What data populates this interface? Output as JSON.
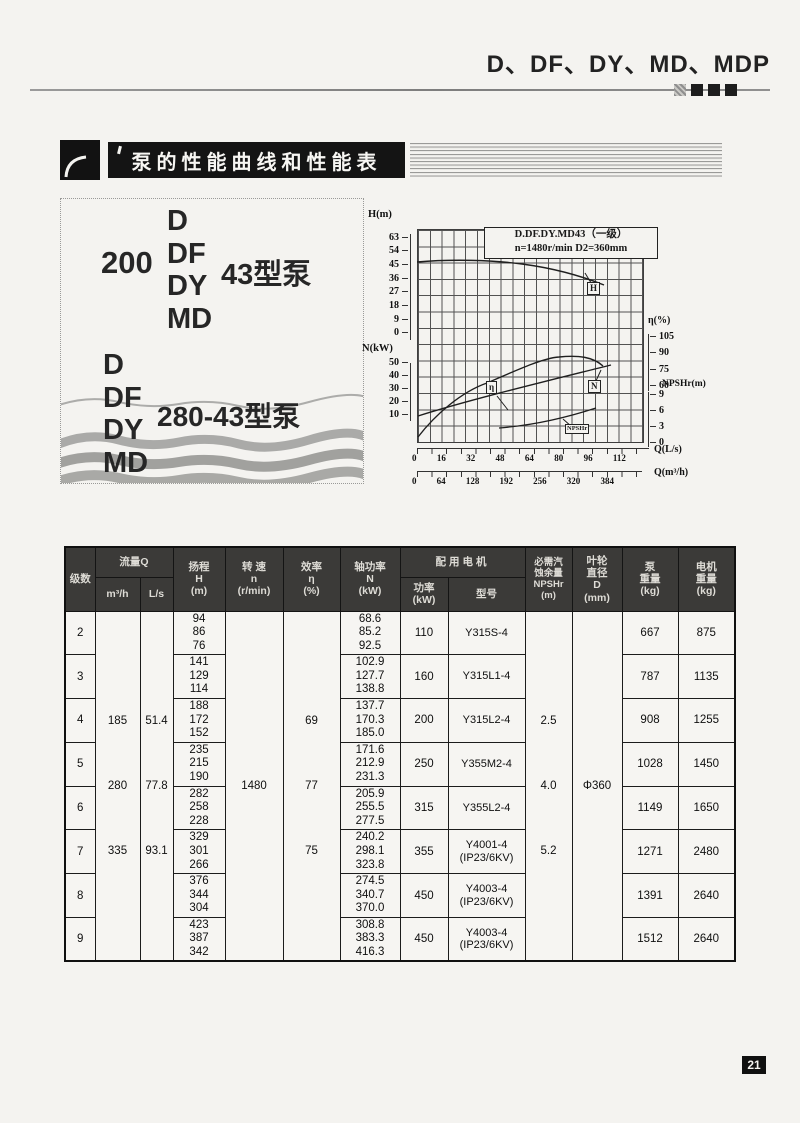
{
  "page": {
    "number": "21"
  },
  "header": {
    "title": "D、DF、DY、MD、MDP"
  },
  "banner": {
    "title": "泵的性能曲线和性能表"
  },
  "logo": {
    "group1": {
      "prefix": "200",
      "models": [
        "D",
        "DF",
        "DY",
        "MD"
      ],
      "suffix": "43型泵"
    },
    "group2": {
      "models": [
        "D",
        "DF",
        "DY",
        "MD"
      ],
      "suffix": "280-43型泵"
    }
  },
  "chart_data": {
    "type": "line",
    "title": "D.DF.DY.MD43（一级）",
    "subtitle": "n=1480r/min  D2=360mm",
    "grid": true,
    "axes": {
      "h": {
        "label": "H(m)",
        "ticks": [
          "63",
          "54",
          "45",
          "36",
          "27",
          "18",
          "9",
          "0"
        ]
      },
      "n": {
        "label": "N(kW)",
        "ticks": [
          "50",
          "40",
          "30",
          "20",
          "10"
        ]
      },
      "eta": {
        "label": "η(%)",
        "ticks": [
          "105",
          "90",
          "75",
          "60"
        ]
      },
      "npshr": {
        "label": "NPSHr(m)",
        "ticks": [
          "9",
          "6",
          "3",
          "0"
        ]
      },
      "q_ls": {
        "label": "Q(L/s)",
        "ticks": [
          "0",
          "16",
          "32",
          "48",
          "64",
          "80",
          "96",
          "112"
        ]
      },
      "q_m3h": {
        "label": "Q(m³/h)",
        "ticks": [
          "0",
          "64",
          "128",
          "192",
          "256",
          "320",
          "384"
        ]
      }
    },
    "series": [
      {
        "name": "H",
        "unit": "m",
        "x_q_ls": [
          0,
          16,
          32,
          48,
          64,
          80,
          96,
          102
        ],
        "y": [
          47,
          47,
          46,
          45,
          43.5,
          40.5,
          35.5,
          32
        ]
      },
      {
        "name": "N",
        "unit": "kW",
        "x_q_ls": [
          0,
          16,
          32,
          48,
          64,
          80,
          96,
          106
        ],
        "y": [
          8.5,
          15,
          22,
          27,
          32,
          37.5,
          43,
          48
        ]
      },
      {
        "name": "η",
        "unit": "%",
        "x_q_ls": [
          0,
          16,
          32,
          48,
          64,
          80,
          96,
          102
        ],
        "y": [
          0,
          32,
          52,
          63,
          70,
          75,
          77,
          74
        ]
      },
      {
        "name": "NPSHr",
        "unit": "m",
        "x_q_ls": [
          46,
          64,
          80,
          98
        ],
        "y": [
          2.5,
          3.2,
          4.2,
          6.0
        ]
      }
    ]
  },
  "table": {
    "header": {
      "stage": "级数",
      "flow": "流量Q",
      "flow_m3h": "m³/h",
      "flow_ls": "L/s",
      "head": "扬程\nH\n(m)",
      "speed": "转 速\nn\n(r/min)",
      "eff": "效率\nη\n(%)",
      "shaft": "轴功率\nN\n(kW)",
      "motor_group": "配用电机",
      "motor_power": "功率\n(kW)",
      "motor_model": "型号",
      "npshr": "必需汽\n蚀余量\nNPSHr\n(m)",
      "diameter": "叶轮\n直径\nD\n(mm)",
      "pump_weight": "泵\n重量\n(kg)",
      "motor_weight": "电机\n重量\n(kg)"
    },
    "merged": {
      "flow_m3h": [
        "185",
        "280",
        "335"
      ],
      "flow_ls": [
        "51.4",
        "77.8",
        "93.1"
      ],
      "speed": "1480",
      "eff": [
        "69",
        "77",
        "75"
      ],
      "npshr": [
        "2.5",
        "4.0",
        "5.2"
      ],
      "diameter": "Φ360"
    },
    "rows": [
      {
        "stage": "2",
        "h": [
          "94",
          "86",
          "76"
        ],
        "n": [
          "68.6",
          "85.2",
          "92.5"
        ],
        "power": "110",
        "model": "Y315S-4",
        "model2": "",
        "pump": "667",
        "motor": "875"
      },
      {
        "stage": "3",
        "h": [
          "141",
          "129",
          "114"
        ],
        "n": [
          "102.9",
          "127.7",
          "138.8"
        ],
        "power": "160",
        "model": "Y315L1-4",
        "model2": "",
        "pump": "787",
        "motor": "1135"
      },
      {
        "stage": "4",
        "h": [
          "188",
          "172",
          "152"
        ],
        "n": [
          "137.7",
          "170.3",
          "185.0"
        ],
        "power": "200",
        "model": "Y315L2-4",
        "model2": "",
        "pump": "908",
        "motor": "1255"
      },
      {
        "stage": "5",
        "h": [
          "235",
          "215",
          "190"
        ],
        "n": [
          "171.6",
          "212.9",
          "231.3"
        ],
        "power": "250",
        "model": "Y355M2-4",
        "model2": "",
        "pump": "1028",
        "motor": "1450"
      },
      {
        "stage": "6",
        "h": [
          "282",
          "258",
          "228"
        ],
        "n": [
          "205.9",
          "255.5",
          "277.5"
        ],
        "power": "315",
        "model": "Y355L2-4",
        "model2": "",
        "pump": "1149",
        "motor": "1650"
      },
      {
        "stage": "7",
        "h": [
          "329",
          "301",
          "266"
        ],
        "n": [
          "240.2",
          "298.1",
          "323.8"
        ],
        "power": "355",
        "model": "Y4001-4",
        "model2": "(IP23/6KV)",
        "pump": "1271",
        "motor": "2480"
      },
      {
        "stage": "8",
        "h": [
          "376",
          "344",
          "304"
        ],
        "n": [
          "274.5",
          "340.7",
          "370.0"
        ],
        "power": "450",
        "model": "Y4003-4",
        "model2": "(IP23/6KV)",
        "pump": "1391",
        "motor": "2640"
      },
      {
        "stage": "9",
        "h": [
          "423",
          "387",
          "342"
        ],
        "n": [
          "308.8",
          "383.3",
          "416.3"
        ],
        "power": "450",
        "model": "Y4003-4",
        "model2": "(IP23/6KV)",
        "pump": "1512",
        "motor": "2640"
      }
    ]
  }
}
